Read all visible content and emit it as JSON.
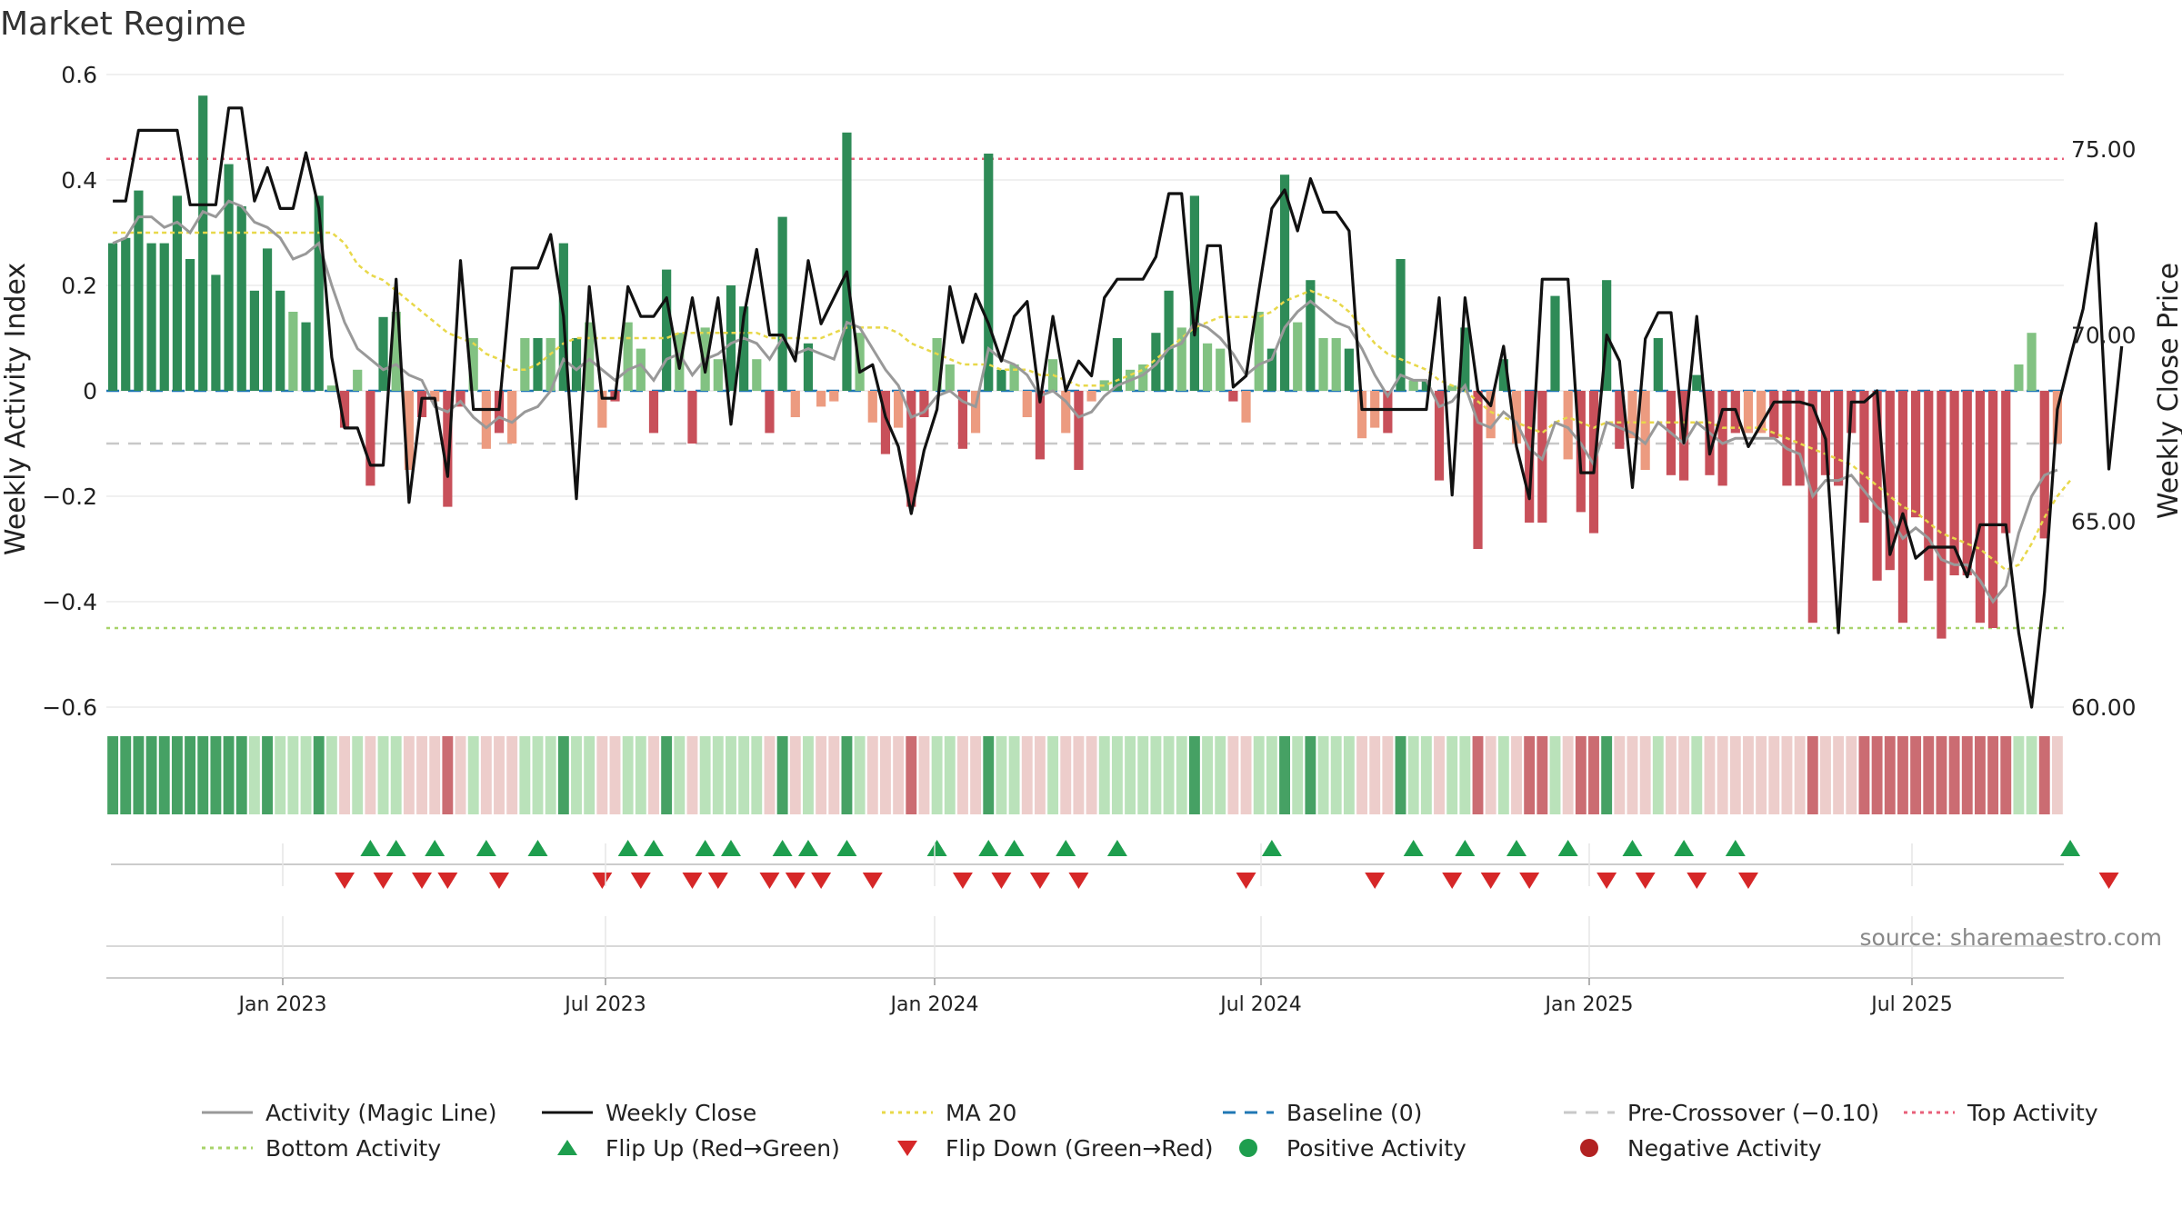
{
  "chart_data": {
    "type": "bar",
    "title": "Market Regime",
    "ylabel_left": "Weekly Activity Index",
    "ylabel_right": "Weekly Close Price",
    "ylim_left": [
      -0.6,
      0.6
    ],
    "ylim_right": [
      60.0,
      77.0
    ],
    "y_ticks_left": [
      "0.6",
      "0.4",
      "0.2",
      "0",
      "−0.2",
      "−0.4",
      "−0.6"
    ],
    "y_ticks_right": [
      "75.00",
      "70.00",
      "65.00",
      "60.00"
    ],
    "x_ticks": [
      "Jan 2023",
      "Jul 2023",
      "Jan 2024",
      "Jul 2024",
      "Jan 2025",
      "Jul 2025"
    ],
    "top_activity_level": 0.44,
    "bottom_activity_level": -0.45,
    "pre_crossover_level": -0.1,
    "source": "source: sharemaestro.com",
    "grid": true,
    "legend_placement": "bottom",
    "activity_values": [
      0.28,
      0.29,
      0.38,
      0.28,
      0.28,
      0.37,
      0.25,
      0.56,
      0.22,
      0.43,
      0.35,
      0.19,
      0.27,
      0.19,
      0.15,
      0.13,
      0.37,
      0.01,
      -0.07,
      0.04,
      -0.18,
      0.14,
      0.15,
      -0.15,
      -0.05,
      -0.02,
      -0.22,
      -0.03,
      0.1,
      -0.11,
      -0.08,
      -0.1,
      0.1,
      0.1,
      0.1,
      0.28,
      0.1,
      0.13,
      -0.07,
      -0.02,
      0.13,
      0.08,
      -0.08,
      0.23,
      0.11,
      -0.1,
      0.12,
      0.06,
      0.2,
      0.16,
      0.06,
      -0.08,
      0.33,
      -0.05,
      0.09,
      -0.03,
      -0.02,
      0.49,
      0.11,
      -0.06,
      -0.12,
      -0.07,
      -0.22,
      -0.05,
      0.1,
      0.05,
      -0.11,
      -0.08,
      0.45,
      0.04,
      0.05,
      -0.05,
      -0.13,
      0.06,
      -0.08,
      -0.15,
      -0.02,
      0.02,
      0.1,
      0.04,
      0.05,
      0.11,
      0.19,
      0.12,
      0.37,
      0.09,
      0.08,
      -0.02,
      -0.06,
      0.15,
      0.08,
      0.41,
      0.13,
      0.21,
      0.1,
      0.1,
      0.08,
      -0.09,
      -0.07,
      -0.08,
      0.25,
      0.02,
      0.02,
      -0.17,
      0.01,
      0.12,
      -0.3,
      -0.09,
      0.06,
      -0.1,
      -0.25,
      -0.25,
      0.18,
      -0.13,
      -0.23,
      -0.27,
      0.21,
      -0.11,
      -0.09,
      -0.15,
      0.1,
      -0.16,
      -0.17,
      0.03,
      -0.16,
      -0.18,
      -0.08,
      -0.08,
      -0.08,
      -0.09,
      -0.18,
      -0.18,
      -0.44,
      -0.16,
      -0.18,
      -0.08,
      -0.25,
      -0.36,
      -0.34,
      -0.44,
      -0.24,
      -0.36,
      -0.47,
      -0.35,
      -0.35,
      -0.44,
      -0.45,
      -0.27,
      0.05,
      0.11,
      -0.28,
      -0.1
    ],
    "weekly_close": [
      73.6,
      73.6,
      75.5,
      75.5,
      75.5,
      75.5,
      73.5,
      73.5,
      73.5,
      76.1,
      76.1,
      73.6,
      74.5,
      73.4,
      73.4,
      74.9,
      73.4,
      69.4,
      67.5,
      67.5,
      66.5,
      66.5,
      71.5,
      65.5,
      68.3,
      68.3,
      66.2,
      72.0,
      68.0,
      68.0,
      68.0,
      71.8,
      71.8,
      71.8,
      72.7,
      70.5,
      65.6,
      71.3,
      68.3,
      68.3,
      71.3,
      70.5,
      70.5,
      71.0,
      69.1,
      71.0,
      69.0,
      71.0,
      67.6,
      70.5,
      72.3,
      70.0,
      70.0,
      69.3,
      72.0,
      70.3,
      71.0,
      71.7,
      69.0,
      69.2,
      67.8,
      67.0,
      65.2,
      66.9,
      68.0,
      71.3,
      69.8,
      71.1,
      70.3,
      69.3,
      70.5,
      70.9,
      68.2,
      70.5,
      68.5,
      69.3,
      68.9,
      71.0,
      71.5,
      71.5,
      71.5,
      72.1,
      73.8,
      73.8,
      70.0,
      72.4,
      72.4,
      68.6,
      68.9,
      71.2,
      73.4,
      73.9,
      72.8,
      74.2,
      73.3,
      73.3,
      72.8,
      68.0,
      68.0,
      68.0,
      68.0,
      68.0,
      68.0,
      71.0,
      65.7,
      71.0,
      68.5,
      68.1,
      69.7,
      67.0,
      65.6,
      71.5,
      71.5,
      71.5,
      66.3,
      66.3,
      70.0,
      69.3,
      65.9,
      69.9,
      70.6,
      70.6,
      67.1,
      70.5,
      66.8,
      68.0,
      68.0,
      67.0,
      67.6,
      68.2,
      68.2,
      68.2,
      68.1,
      67.2,
      62.0,
      68.2,
      68.2,
      68.5,
      64.1,
      65.2,
      64.0,
      64.3,
      64.3,
      64.3,
      63.5,
      64.9,
      64.9,
      64.9,
      62.0,
      60.0,
      63.1,
      68.0,
      69.4,
      70.7,
      73.0,
      66.4,
      69.7
    ],
    "activity_line": [
      0.28,
      0.29,
      0.33,
      0.33,
      0.31,
      0.32,
      0.3,
      0.34,
      0.33,
      0.36,
      0.35,
      0.32,
      0.31,
      0.29,
      0.25,
      0.26,
      0.28,
      0.2,
      0.13,
      0.08,
      0.06,
      0.04,
      0.05,
      0.03,
      0.02,
      -0.03,
      -0.04,
      -0.02,
      -0.05,
      -0.07,
      -0.05,
      -0.06,
      -0.04,
      -0.03,
      0.0,
      0.06,
      0.04,
      0.06,
      0.04,
      0.02,
      0.04,
      0.05,
      0.02,
      0.06,
      0.07,
      0.03,
      0.06,
      0.07,
      0.09,
      0.1,
      0.09,
      0.06,
      0.1,
      0.07,
      0.08,
      0.07,
      0.06,
      0.13,
      0.12,
      0.08,
      0.04,
      0.01,
      -0.05,
      -0.04,
      -0.01,
      0.0,
      -0.02,
      -0.03,
      0.08,
      0.06,
      0.05,
      0.03,
      -0.01,
      0.0,
      -0.02,
      -0.05,
      -0.04,
      -0.01,
      0.01,
      0.02,
      0.03,
      0.05,
      0.08,
      0.09,
      0.13,
      0.12,
      0.1,
      0.07,
      0.03,
      0.05,
      0.06,
      0.12,
      0.15,
      0.17,
      0.15,
      0.13,
      0.12,
      0.08,
      0.03,
      -0.01,
      0.03,
      0.02,
      0.02,
      -0.03,
      -0.02,
      0.01,
      -0.06,
      -0.07,
      -0.04,
      -0.06,
      -0.11,
      -0.13,
      -0.06,
      -0.07,
      -0.1,
      -0.14,
      -0.06,
      -0.07,
      -0.08,
      -0.1,
      -0.06,
      -0.08,
      -0.1,
      -0.06,
      -0.08,
      -0.1,
      -0.09,
      -0.09,
      -0.09,
      -0.09,
      -0.11,
      -0.12,
      -0.2,
      -0.17,
      -0.17,
      -0.16,
      -0.19,
      -0.22,
      -0.24,
      -0.28,
      -0.26,
      -0.28,
      -0.32,
      -0.33,
      -0.33,
      -0.36,
      -0.4,
      -0.37,
      -0.27,
      -0.2,
      -0.16,
      -0.15
    ],
    "ma20": [
      0.3,
      0.3,
      0.3,
      0.3,
      0.3,
      0.3,
      0.3,
      0.3,
      0.3,
      0.3,
      0.3,
      0.3,
      0.3,
      0.3,
      0.3,
      0.3,
      0.3,
      0.3,
      0.28,
      0.24,
      0.22,
      0.21,
      0.19,
      0.17,
      0.15,
      0.13,
      0.11,
      0.1,
      0.09,
      0.07,
      0.06,
      0.04,
      0.04,
      0.05,
      0.07,
      0.09,
      0.1,
      0.1,
      0.1,
      0.1,
      0.1,
      0.1,
      0.1,
      0.1,
      0.11,
      0.11,
      0.11,
      0.11,
      0.11,
      0.11,
      0.11,
      0.1,
      0.1,
      0.1,
      0.1,
      0.1,
      0.11,
      0.12,
      0.12,
      0.12,
      0.12,
      0.11,
      0.09,
      0.08,
      0.07,
      0.06,
      0.05,
      0.05,
      0.05,
      0.04,
      0.04,
      0.04,
      0.03,
      0.03,
      0.02,
      0.01,
      0.01,
      0.01,
      0.02,
      0.03,
      0.04,
      0.06,
      0.08,
      0.1,
      0.12,
      0.13,
      0.14,
      0.14,
      0.14,
      0.14,
      0.15,
      0.17,
      0.18,
      0.19,
      0.18,
      0.17,
      0.15,
      0.12,
      0.09,
      0.07,
      0.06,
      0.05,
      0.04,
      0.02,
      0.01,
      0.0,
      -0.02,
      -0.04,
      -0.05,
      -0.06,
      -0.07,
      -0.08,
      -0.06,
      -0.05,
      -0.06,
      -0.07,
      -0.06,
      -0.06,
      -0.06,
      -0.06,
      -0.06,
      -0.06,
      -0.06,
      -0.06,
      -0.06,
      -0.07,
      -0.07,
      -0.07,
      -0.07,
      -0.08,
      -0.09,
      -0.1,
      -0.11,
      -0.12,
      -0.13,
      -0.14,
      -0.16,
      -0.18,
      -0.2,
      -0.22,
      -0.23,
      -0.25,
      -0.27,
      -0.28,
      -0.29,
      -0.3,
      -0.32,
      -0.34,
      -0.33,
      -0.29,
      -0.24,
      -0.2,
      -0.17
    ],
    "flip_up_weeks": [
      20,
      22,
      25,
      29,
      33,
      40,
      42,
      46,
      48,
      52,
      54,
      57,
      64,
      68,
      70,
      74,
      78,
      90,
      101,
      105,
      109,
      113,
      118,
      122,
      126,
      152
    ],
    "flip_down_weeks": [
      18,
      21,
      24,
      26,
      30,
      38,
      41,
      45,
      47,
      51,
      53,
      55,
      59,
      66,
      69,
      72,
      75,
      88,
      98,
      104,
      107,
      110,
      116,
      119,
      123,
      127,
      155
    ]
  },
  "legend": [
    {
      "label": "Activity (Magic Line)",
      "icon": "solid-line",
      "color": "#999999"
    },
    {
      "label": "Weekly Close",
      "icon": "solid-line",
      "color": "#111111"
    },
    {
      "label": "MA 20",
      "icon": "dotted-line",
      "color": "#e8d84a"
    },
    {
      "label": "Baseline (0)",
      "icon": "dashed-line",
      "color": "#1f77b4"
    },
    {
      "label": "Pre-Crossover (−0.10)",
      "icon": "dashed-line",
      "color": "#c8c8c8"
    },
    {
      "label": "Top Activity",
      "icon": "dotted-line",
      "color": "#e8607a"
    },
    {
      "label": "Bottom Activity",
      "icon": "dotted-line",
      "color": "#a8d36a"
    },
    {
      "label": "Flip Up (Red→Green)",
      "icon": "triangle-up",
      "color": "#1e9e4e"
    },
    {
      "label": "Flip Down (Green→Red)",
      "icon": "triangle-down",
      "color": "#d62728"
    },
    {
      "label": "Positive Activity",
      "icon": "circle",
      "color": "#1e9e4e"
    },
    {
      "label": "Negative Activity",
      "icon": "circle",
      "color": "#b22222"
    }
  ],
  "colors": {
    "positive_strong": "#2e8b57",
    "positive_weak": "#82c282",
    "negative_strong": "#c8505a",
    "negative_weak": "#ec9b80",
    "ribbon_pos_strong": "#3c9c5c",
    "ribbon_pos_weak": "#b6e0b6",
    "ribbon_neg_strong": "#c8646a",
    "ribbon_neg_weak": "#eccac8",
    "grid": "#ebebeb"
  }
}
